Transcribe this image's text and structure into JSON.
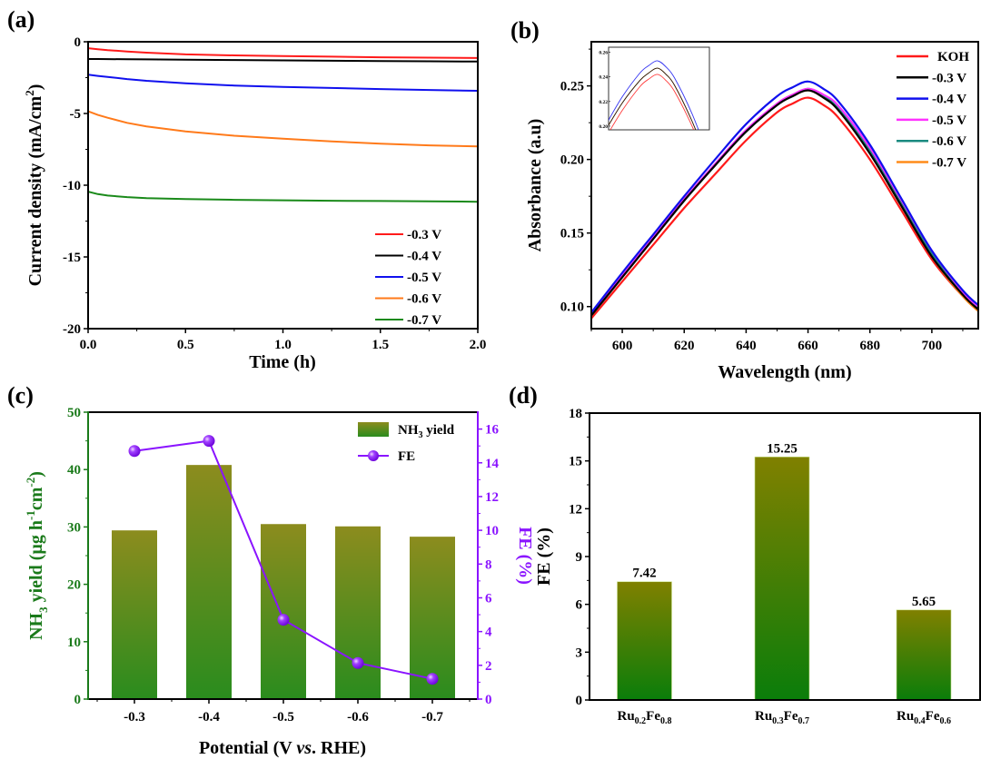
{
  "figure": {
    "panels": [
      "(a)",
      "(b)",
      "(c)",
      "(d)"
    ]
  },
  "chart_data": [
    {
      "id": "a",
      "type": "line",
      "panel_label": "(a)",
      "xlabel": "Time (h)",
      "ylabel": "Current density (mA/cm2)",
      "ylabel_main": "Current density (mA/cm",
      "ylabel_sup": "2",
      "ylabel_tail": ")",
      "xlim": [
        0,
        2
      ],
      "ylim": [
        -20,
        0
      ],
      "xticks": [
        "0.0",
        "0.5",
        "1.0",
        "1.5",
        "2.0"
      ],
      "xtick_values": [
        0,
        0.5,
        1.0,
        1.5,
        2.0
      ],
      "yticks": [
        "0",
        "-5",
        "-10",
        "-15",
        "-20"
      ],
      "ytick_values": [
        0,
        -5,
        -10,
        -15,
        -20
      ],
      "legend_position": "bottom-right",
      "grid": false,
      "x": [
        0,
        0.05,
        0.1,
        0.2,
        0.3,
        0.5,
        0.75,
        1.0,
        1.25,
        1.5,
        1.75,
        2.0
      ],
      "series": [
        {
          "name": "-0.3 V",
          "color": "#ff1a1a",
          "values": [
            -0.45,
            -0.52,
            -0.58,
            -0.68,
            -0.76,
            -0.88,
            -0.95,
            -1.0,
            -1.04,
            -1.08,
            -1.11,
            -1.13
          ]
        },
        {
          "name": "-0.4 V",
          "color": "#000000",
          "values": [
            -1.2,
            -1.2,
            -1.21,
            -1.22,
            -1.23,
            -1.25,
            -1.27,
            -1.3,
            -1.32,
            -1.34,
            -1.36,
            -1.38
          ]
        },
        {
          "name": "-0.5 V",
          "color": "#1010ee",
          "values": [
            -2.3,
            -2.38,
            -2.45,
            -2.6,
            -2.72,
            -2.9,
            -3.05,
            -3.15,
            -3.22,
            -3.3,
            -3.36,
            -3.42
          ]
        },
        {
          "name": "-0.6 V",
          "color": "#ff7a1a",
          "values": [
            -4.85,
            -5.1,
            -5.3,
            -5.65,
            -5.9,
            -6.25,
            -6.55,
            -6.75,
            -6.95,
            -7.1,
            -7.22,
            -7.3
          ]
        },
        {
          "name": "-0.7 V",
          "color": "#1a8a1a",
          "values": [
            -10.45,
            -10.62,
            -10.72,
            -10.83,
            -10.9,
            -10.97,
            -11.02,
            -11.05,
            -11.08,
            -11.1,
            -11.12,
            -11.15
          ]
        }
      ]
    },
    {
      "id": "b",
      "type": "line",
      "panel_label": "(b)",
      "xlabel": "Wavelength (nm)",
      "ylabel": "Absorbance (a.u)",
      "xlim": [
        590,
        715
      ],
      "ylim": [
        0.085,
        0.28
      ],
      "xticks": [
        "600",
        "620",
        "640",
        "660",
        "680",
        "700"
      ],
      "xtick_values": [
        600,
        620,
        640,
        660,
        680,
        700
      ],
      "yticks": [
        "0.10",
        "0.15",
        "0.20",
        "0.25"
      ],
      "ytick_values": [
        0.1,
        0.15,
        0.2,
        0.25
      ],
      "legend_position": "top-right",
      "grid": false,
      "x": [
        590,
        600,
        610,
        620,
        630,
        640,
        650,
        655,
        660,
        665,
        670,
        680,
        690,
        700,
        710,
        715
      ],
      "series": [
        {
          "name": "KOH",
          "color": "#ff1a1a",
          "values": [
            0.092,
            0.117,
            0.142,
            0.167,
            0.19,
            0.213,
            0.232,
            0.238,
            0.242,
            0.237,
            0.228,
            0.2,
            0.166,
            0.132,
            0.107,
            0.097
          ]
        },
        {
          "name": "-0.3 V",
          "color": "#000000",
          "values": [
            0.094,
            0.12,
            0.146,
            0.172,
            0.196,
            0.219,
            0.237,
            0.243,
            0.247,
            0.242,
            0.233,
            0.204,
            0.169,
            0.134,
            0.108,
            0.098
          ]
        },
        {
          "name": "-0.4 V",
          "color": "#1010ee",
          "values": [
            0.096,
            0.123,
            0.149,
            0.175,
            0.2,
            0.224,
            0.243,
            0.249,
            0.253,
            0.248,
            0.239,
            0.21,
            0.174,
            0.138,
            0.111,
            0.101
          ]
        },
        {
          "name": "-0.5 V",
          "color": "#ff33ff",
          "values": [
            0.095,
            0.121,
            0.147,
            0.173,
            0.197,
            0.22,
            0.238,
            0.244,
            0.248,
            0.244,
            0.236,
            0.208,
            0.173,
            0.138,
            0.11,
            0.1
          ]
        },
        {
          "name": "-0.6 V",
          "color": "#1a8a80",
          "values": [
            0.094,
            0.12,
            0.146,
            0.172,
            0.196,
            0.219,
            0.237,
            0.243,
            0.248,
            0.243,
            0.234,
            0.206,
            0.171,
            0.136,
            0.109,
            0.099
          ]
        },
        {
          "name": "-0.7 V",
          "color": "#ff8c1a",
          "values": [
            0.094,
            0.12,
            0.146,
            0.172,
            0.196,
            0.219,
            0.237,
            0.243,
            0.247,
            0.242,
            0.233,
            0.204,
            0.169,
            0.134,
            0.107,
            0.097
          ]
        }
      ],
      "inset": {
        "yticks": [
          "0.26",
          "0.24",
          "0.22",
          "0.20"
        ],
        "ytick_values": [
          0.26,
          0.24,
          0.22,
          0.2
        ],
        "ylim": [
          0.197,
          0.264
        ],
        "xlim": [
          632,
          690
        ]
      }
    },
    {
      "id": "c",
      "type": "bar",
      "panel_label": "(c)",
      "xlabel": "Potential (V vs. RHE)",
      "xlabel_pre": "Potential (V ",
      "xlabel_italic": "vs",
      "xlabel_post": ". RHE)",
      "ylabel": "NH3 yield (µg h-1cm-2)",
      "ylabel_parts": {
        "a": "NH",
        "sub3": "3",
        "b": " yield (µg h",
        "sup1": "-1",
        "c": "cm",
        "sup2": "-2",
        "d": ")"
      },
      "y2label": "FE (%)",
      "categories": [
        "-0.3",
        "-0.4",
        "-0.5",
        "-0.6",
        "-0.7"
      ],
      "ylim": [
        0,
        50
      ],
      "yticks": [
        "0",
        "10",
        "20",
        "30",
        "40",
        "50"
      ],
      "ytick_values": [
        0,
        10,
        20,
        30,
        40,
        50
      ],
      "y2lim": [
        0,
        17
      ],
      "y2ticks": [
        "0",
        "2",
        "4",
        "6",
        "8",
        "10",
        "12",
        "14",
        "16"
      ],
      "y2tick_values": [
        0,
        2,
        4,
        6,
        8,
        10,
        12,
        14,
        16
      ],
      "legend_position": "top-right",
      "legend": {
        "bar_label_main": "NH",
        "bar_label_sub": "3",
        "bar_label_tail": " yield",
        "line_label": "FE"
      },
      "series": [
        {
          "name": "NH3 yield",
          "type": "bar",
          "axis": "left",
          "color_top": "#8c8c1e",
          "color_bottom": "#2a8c1e",
          "values": [
            29.4,
            40.8,
            30.5,
            30.1,
            28.3
          ]
        },
        {
          "name": "FE",
          "type": "line",
          "axis": "right",
          "color": "#8a14ff",
          "values": [
            14.7,
            15.3,
            4.7,
            2.14,
            1.2
          ]
        }
      ],
      "colors": {
        "left_axis": "#1a7a1a",
        "right_axis": "#8a14ff"
      }
    },
    {
      "id": "d",
      "type": "bar",
      "panel_label": "(d)",
      "xlabel": "",
      "ylabel": "FE (%)",
      "categories": [
        "Ru0.2Fe0.8",
        "Ru0.3Fe0.7",
        "Ru0.4Fe0.6"
      ],
      "category_parts": [
        {
          "a": "Ru",
          "s1": "0.2",
          "b": "Fe",
          "s2": "0.8"
        },
        {
          "a": "Ru",
          "s1": "0.3",
          "b": "Fe",
          "s2": "0.7"
        },
        {
          "a": "Ru",
          "s1": "0.4",
          "b": "Fe",
          "s2": "0.6"
        }
      ],
      "values": [
        7.42,
        15.25,
        5.65
      ],
      "data_labels": [
        "7.42",
        "15.25",
        "5.65"
      ],
      "ylim": [
        0,
        18
      ],
      "yticks": [
        "0",
        "3",
        "6",
        "9",
        "12",
        "15",
        "18"
      ],
      "ytick_values": [
        0,
        3,
        6,
        9,
        12,
        15,
        18
      ],
      "color_top": "#808000",
      "color_bottom": "#0a7d0a"
    }
  ]
}
